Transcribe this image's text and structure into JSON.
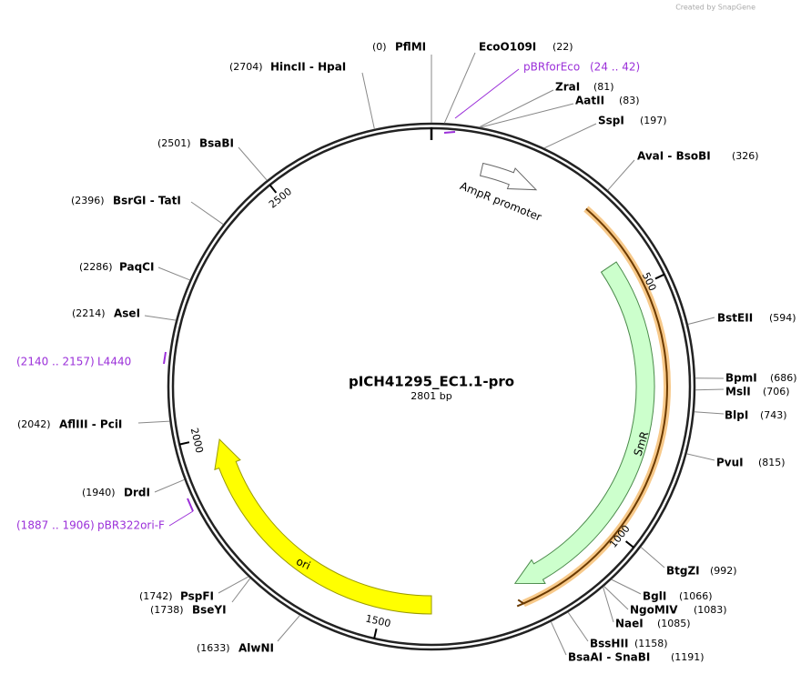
{
  "watermark": "Created by SnapGene",
  "map": {
    "title": "pICH41295_EC1.1-pro",
    "length": {
      "value": 2801,
      "label": "2801 bp"
    },
    "ticks": [
      500,
      1000,
      1500,
      2000,
      2500
    ],
    "sites": [
      {
        "name": "PflMI",
        "position": {
          "value": 0,
          "label": "(0)"
        }
      },
      {
        "name": "EcoO109I",
        "position": {
          "value": 22,
          "label": "(22)"
        }
      },
      {
        "name": "ZraI",
        "position": {
          "value": 81,
          "label": "(81)"
        }
      },
      {
        "name": "AatII",
        "position": {
          "value": 83,
          "label": "(83)"
        }
      },
      {
        "name": "SspI",
        "position": {
          "value": 197,
          "label": "(197)"
        }
      },
      {
        "name": "AvaI - BsoBI",
        "position": {
          "value": 326,
          "label": "(326)"
        }
      },
      {
        "name": "BstEII",
        "position": {
          "value": 594,
          "label": "(594)"
        }
      },
      {
        "name": "BpmI",
        "position": {
          "value": 686,
          "label": "(686)"
        }
      },
      {
        "name": "MslI",
        "position": {
          "value": 706,
          "label": "(706)"
        }
      },
      {
        "name": "BlpI",
        "position": {
          "value": 743,
          "label": "(743)"
        }
      },
      {
        "name": "PvuI",
        "position": {
          "value": 815,
          "label": "(815)"
        }
      },
      {
        "name": "BtgZI",
        "position": {
          "value": 992,
          "label": "(992)"
        }
      },
      {
        "name": "BglI",
        "position": {
          "value": 1066,
          "label": "(1066)"
        }
      },
      {
        "name": "NgoMIV",
        "position": {
          "value": 1083,
          "label": "(1083)"
        }
      },
      {
        "name": "NaeI",
        "position": {
          "value": 1085,
          "label": "(1085)"
        }
      },
      {
        "name": "BssHII",
        "position": {
          "value": 1158,
          "label": "(1158)"
        }
      },
      {
        "name": "BsaAI - SnaBI",
        "position": {
          "value": 1191,
          "label": "(1191)"
        }
      },
      {
        "name": "AlwNI",
        "position": {
          "value": 1633,
          "label": "(1633)"
        }
      },
      {
        "name": "BseYI",
        "position": {
          "value": 1738,
          "label": "(1738)"
        }
      },
      {
        "name": "PspFI",
        "position": {
          "value": 1742,
          "label": "(1742)"
        }
      },
      {
        "name": "DrdI",
        "position": {
          "value": 1940,
          "label": "(1940)"
        }
      },
      {
        "name": "AflIII - PciI",
        "position": {
          "value": 2042,
          "label": "(2042)"
        }
      },
      {
        "name": "AseI",
        "position": {
          "value": 2214,
          "label": "(2214)"
        }
      },
      {
        "name": "PaqCI",
        "position": {
          "value": 2286,
          "label": "(2286)"
        }
      },
      {
        "name": "BsrGI - TatI",
        "position": {
          "value": 2396,
          "label": "(2396)"
        }
      },
      {
        "name": "BsaBI",
        "position": {
          "value": 2501,
          "label": "(2501)"
        }
      },
      {
        "name": "HincII - HpaI",
        "position": {
          "value": 2704,
          "label": "(2704)"
        }
      }
    ],
    "primers": [
      {
        "name": "pBRforEco",
        "range": "(24 .. 42)"
      },
      {
        "name": "L4440",
        "range": "(2140 .. 2157)"
      },
      {
        "name": "pBR322ori-F",
        "range": "(1887 .. 1906)"
      }
    ],
    "features": [
      {
        "label": "AmpR promoter"
      },
      {
        "label": "SmR"
      },
      {
        "label": "ori"
      }
    ]
  }
}
